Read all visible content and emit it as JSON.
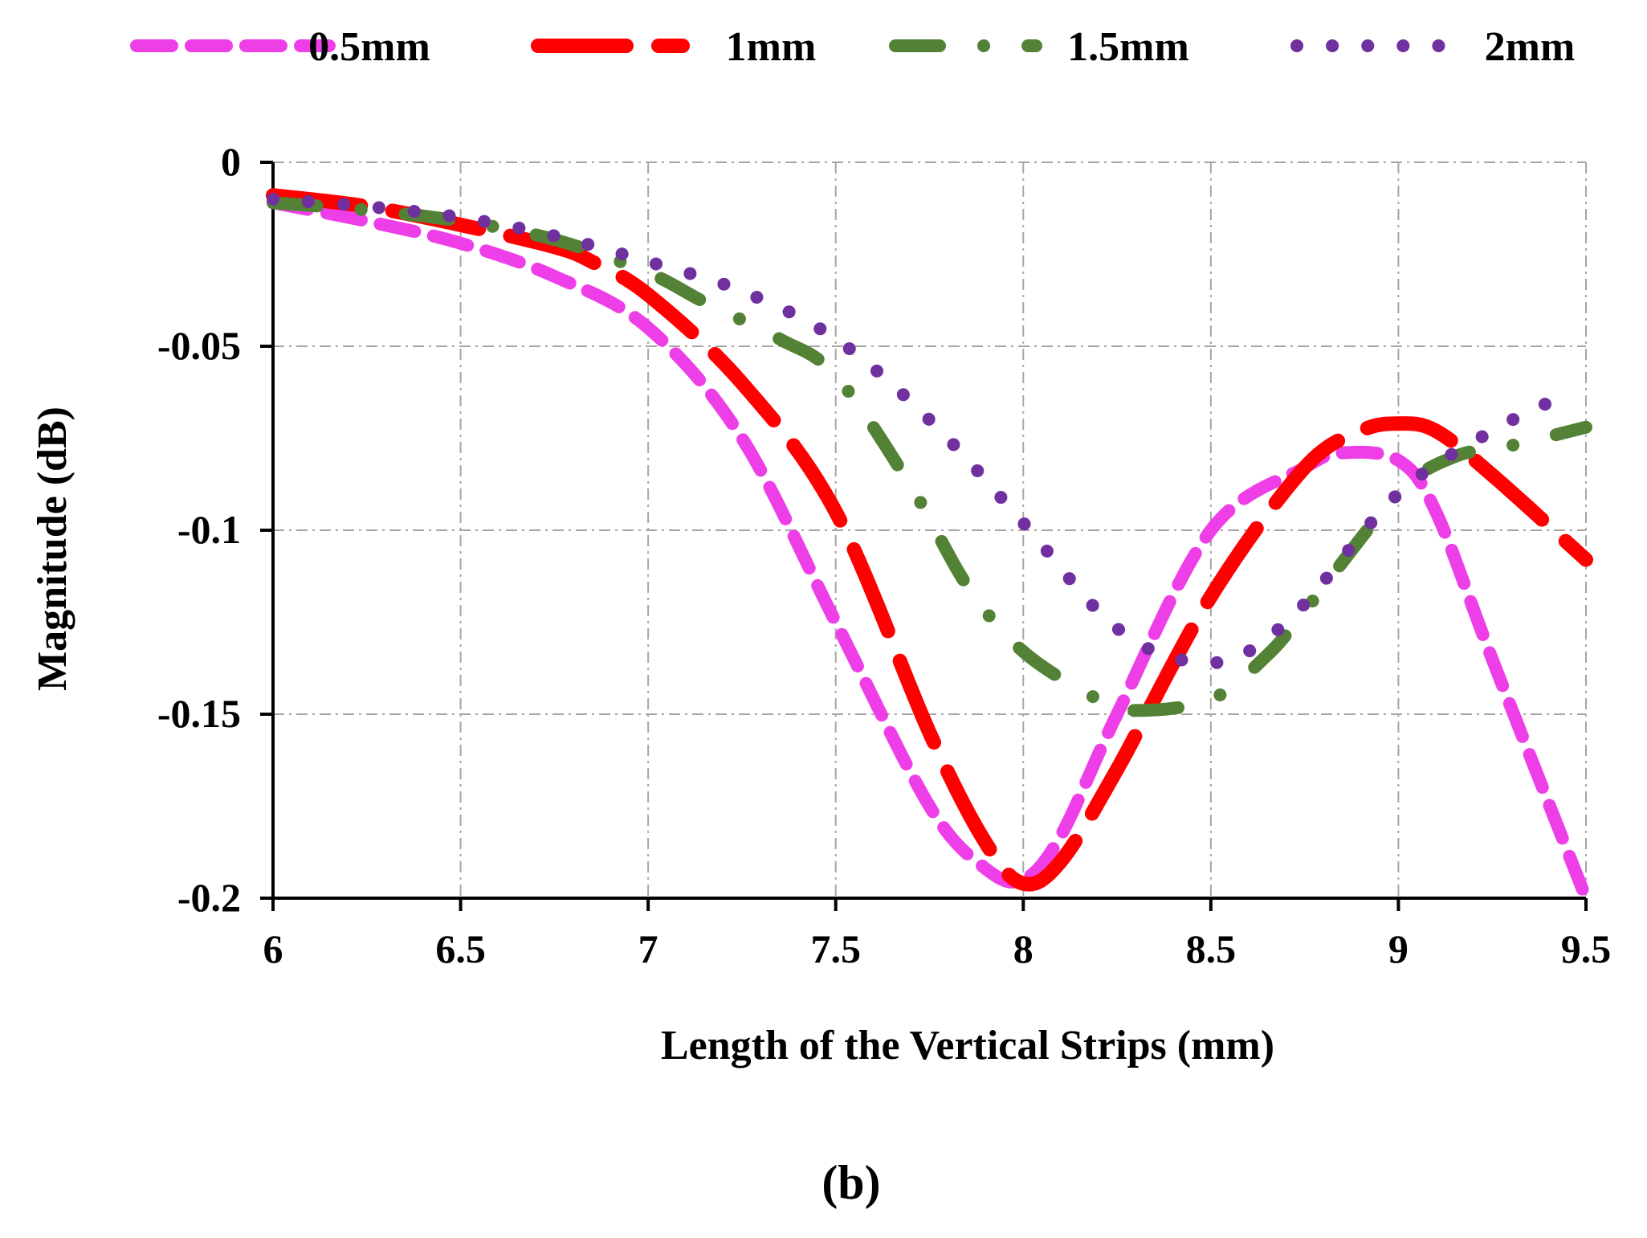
{
  "chart_data": {
    "type": "line",
    "title": "",
    "caption": "(b)",
    "xlabel": "Length of the Vertical Strips (mm)",
    "ylabel": "Magnitude (dB)",
    "xlim": [
      6,
      9.5
    ],
    "ylim": [
      -0.2,
      0
    ],
    "xticks": [
      6,
      6.5,
      7,
      7.5,
      8,
      8.5,
      9,
      9.5
    ],
    "xtick_labels": [
      "6",
      "6.5",
      "7",
      "7.5",
      "8",
      "8.5",
      "9",
      "9.5"
    ],
    "yticks": [
      0,
      -0.05,
      -0.1,
      -0.15,
      -0.2
    ],
    "ytick_labels": [
      "0",
      "-0.05",
      "-0.1",
      "-0.15",
      "-0.2"
    ],
    "grid": true,
    "legend_position": "top",
    "series": [
      {
        "name": "0.5mm",
        "color": "#ee3ee8",
        "style": "dash",
        "x": [
          6.0,
          6.25,
          6.5,
          6.75,
          7.0,
          7.25,
          7.5,
          7.75,
          7.9,
          8.0,
          8.1,
          8.25,
          8.5,
          8.75,
          8.85,
          9.0,
          9.1,
          9.25,
          9.5
        ],
        "y": [
          -0.011,
          -0.016,
          -0.022,
          -0.031,
          -0.045,
          -0.075,
          -0.125,
          -0.175,
          -0.192,
          -0.195,
          -0.183,
          -0.15,
          -0.1,
          -0.083,
          -0.079,
          -0.081,
          -0.095,
          -0.135,
          -0.2
        ]
      },
      {
        "name": "1mm",
        "color": "#ff0000",
        "style": "long-dash",
        "x": [
          6.0,
          6.25,
          6.5,
          6.75,
          6.85,
          7.0,
          7.25,
          7.5,
          7.75,
          7.9,
          8.0,
          8.1,
          8.25,
          8.5,
          8.75,
          8.9,
          9.0,
          9.1,
          9.25,
          9.5
        ],
        "y": [
          -0.009,
          -0.012,
          -0.017,
          -0.023,
          -0.027,
          -0.036,
          -0.06,
          -0.095,
          -0.155,
          -0.185,
          -0.196,
          -0.19,
          -0.165,
          -0.118,
          -0.083,
          -0.073,
          -0.071,
          -0.073,
          -0.085,
          -0.108
        ]
      },
      {
        "name": "1.5mm",
        "color": "#538135",
        "style": "dash-dot",
        "x": [
          6.0,
          6.25,
          6.5,
          6.75,
          7.0,
          7.15,
          7.35,
          7.5,
          7.7,
          7.85,
          8.0,
          8.2,
          8.3,
          8.5,
          8.65,
          8.75,
          9.0,
          9.15,
          9.3,
          9.5
        ],
        "y": [
          -0.011,
          -0.013,
          -0.016,
          -0.021,
          -0.03,
          -0.038,
          -0.048,
          -0.058,
          -0.088,
          -0.115,
          -0.133,
          -0.146,
          -0.149,
          -0.146,
          -0.134,
          -0.122,
          -0.09,
          -0.08,
          -0.077,
          -0.072
        ]
      },
      {
        "name": "2mm",
        "color": "#7030a0",
        "style": "dot",
        "x": [
          6.0,
          6.25,
          6.5,
          6.75,
          7.0,
          7.25,
          7.5,
          7.75,
          8.0,
          8.2,
          8.35,
          8.5,
          8.6,
          8.75,
          9.0,
          9.25,
          9.45
        ],
        "y": [
          -0.01,
          -0.012,
          -0.015,
          -0.02,
          -0.027,
          -0.035,
          -0.048,
          -0.07,
          -0.098,
          -0.122,
          -0.133,
          -0.136,
          -0.133,
          -0.12,
          -0.09,
          -0.073,
          -0.063
        ]
      }
    ]
  }
}
